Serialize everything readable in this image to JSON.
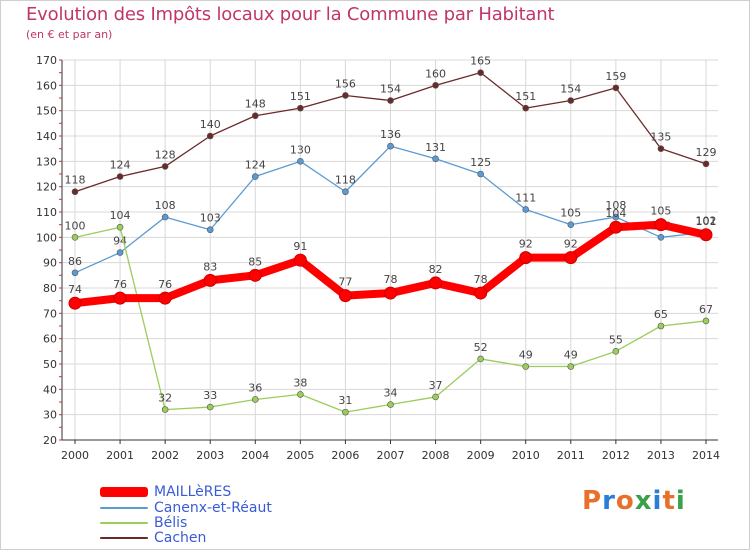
{
  "title": "Evolution des Impôts locaux pour la Commune par Habitant",
  "subtitle": "(en € et par an)",
  "logo_text": "Proxiti",
  "colors": {
    "title": "#c0366b",
    "grid": "#d8d8d8",
    "axis": "#333333",
    "legend_text": "#3a5bd6"
  },
  "chart_data": {
    "type": "line",
    "title": "Evolution des Impôts locaux pour la Commune par Habitant",
    "subtitle": "(en € et par an)",
    "xlabel": "",
    "ylabel": "",
    "grid": true,
    "legend_position": "bottom-left",
    "ylim": [
      20,
      170
    ],
    "yticks": [
      20,
      30,
      40,
      50,
      60,
      70,
      80,
      90,
      100,
      110,
      120,
      130,
      140,
      150,
      160,
      170
    ],
    "x": [
      "2000",
      "2001",
      "2002",
      "2003",
      "2004",
      "2005",
      "2006",
      "2007",
      "2008",
      "2009",
      "2010",
      "2011",
      "2012",
      "2013",
      "2014"
    ],
    "series": [
      {
        "name": "MAILLèRES",
        "color": "#ff0000",
        "values": [
          74,
          76,
          76,
          83,
          85,
          91,
          77,
          78,
          82,
          78,
          92,
          92,
          104,
          105,
          101
        ]
      },
      {
        "name": "Canenx-et-Réaut",
        "color": "#5b9bd5",
        "values": [
          86,
          94,
          108,
          103,
          124,
          130,
          118,
          136,
          131,
          125,
          111,
          105,
          108,
          100,
          102
        ]
      },
      {
        "name": "Bélis",
        "color": "#9acd5a",
        "values": [
          100,
          104,
          32,
          33,
          36,
          38,
          31,
          34,
          37,
          52,
          49,
          49,
          55,
          65,
          67
        ]
      },
      {
        "name": "Cachen",
        "color": "#6b2a2a",
        "values": [
          118,
          124,
          128,
          140,
          148,
          151,
          156,
          154,
          160,
          165,
          151,
          154,
          159,
          135,
          129
        ]
      }
    ]
  }
}
